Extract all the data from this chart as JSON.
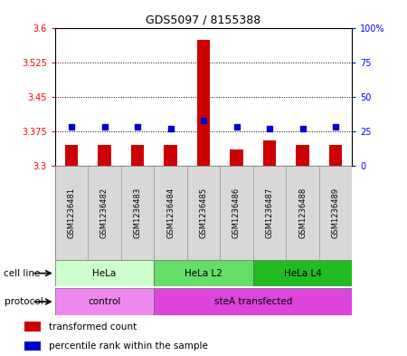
{
  "title": "GDS5097 / 8155388",
  "samples": [
    "GSM1236481",
    "GSM1236482",
    "GSM1236483",
    "GSM1236484",
    "GSM1236485",
    "GSM1236486",
    "GSM1236487",
    "GSM1236488",
    "GSM1236489"
  ],
  "bar_values": [
    3.345,
    3.345,
    3.345,
    3.345,
    3.575,
    3.335,
    3.355,
    3.345,
    3.345
  ],
  "dot_values": [
    28,
    28,
    28,
    27,
    33,
    28,
    27,
    27,
    28
  ],
  "ylim_left": [
    3.3,
    3.6
  ],
  "ylim_right": [
    0,
    100
  ],
  "yticks_left": [
    3.3,
    3.375,
    3.45,
    3.525,
    3.6
  ],
  "yticks_right": [
    0,
    25,
    50,
    75,
    100
  ],
  "ytick_labels_left": [
    "3.3",
    "3.375",
    "3.45",
    "3.525",
    "3.6"
  ],
  "ytick_labels_right": [
    "0",
    "25",
    "50",
    "75",
    "100%"
  ],
  "hlines": [
    3.375,
    3.45,
    3.525
  ],
  "bar_color": "#cc0000",
  "dot_color": "#0000cc",
  "bar_bottom": 3.3,
  "cell_line_groups": [
    {
      "label": "HeLa",
      "start": 0,
      "end": 3,
      "color": "#ccffcc"
    },
    {
      "label": "HeLa L2",
      "start": 3,
      "end": 6,
      "color": "#66dd66"
    },
    {
      "label": "HeLa L4",
      "start": 6,
      "end": 9,
      "color": "#22bb22"
    }
  ],
  "protocol_groups": [
    {
      "label": "control",
      "start": 0,
      "end": 3,
      "color": "#ee88ee"
    },
    {
      "label": "steA transfected",
      "start": 3,
      "end": 9,
      "color": "#dd44dd"
    }
  ],
  "cell_line_label": "cell line",
  "protocol_label": "protocol",
  "legend_items": [
    {
      "color": "#cc0000",
      "label": "transformed count"
    },
    {
      "color": "#0000cc",
      "label": "percentile rank within the sample"
    }
  ],
  "bg_color": "#d8d8d8",
  "plot_bg": "#ffffff",
  "grid_color": "#000000"
}
